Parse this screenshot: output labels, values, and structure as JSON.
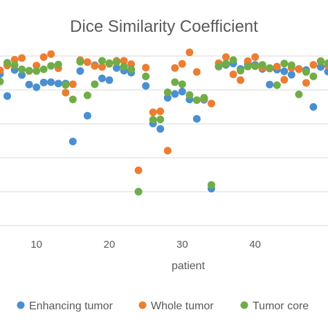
{
  "chart_data": {
    "type": "scatter",
    "title": "Dice Similarity Coefficient",
    "xlabel": "patient",
    "ylabel": "",
    "xlim": [
      5,
      50
    ],
    "ylim": [
      0.4,
      0.9
    ],
    "x_ticks": [
      10,
      20,
      30,
      40
    ],
    "y_gridlines": [
      0.4,
      0.5,
      0.6,
      0.7,
      0.8,
      0.9
    ],
    "grid": true,
    "legend_position": "bottom",
    "series": [
      {
        "name": "Enhancing tumor",
        "color": "#4a8fd1",
        "x": [
          5,
          6,
          7,
          8,
          9,
          10,
          11,
          12,
          13,
          14,
          15,
          16,
          17,
          18,
          19,
          20,
          21,
          22,
          23,
          24,
          25,
          26,
          27,
          28,
          29,
          30,
          31,
          32,
          33,
          34,
          35,
          36,
          37,
          38,
          39,
          40,
          41,
          42,
          43,
          44,
          45,
          46,
          47,
          48,
          49,
          50
        ],
        "y": [
          0.847,
          0.782,
          0.859,
          0.844,
          0.816,
          0.808,
          0.822,
          0.823,
          0.819,
          0.819,
          0.648,
          0.856,
          0.724,
          0.873,
          0.834,
          0.829,
          0.865,
          0.857,
          0.851,
          0.5,
          0.812,
          0.701,
          0.685,
          0.777,
          0.788,
          0.795,
          0.772,
          0.715,
          0.771,
          0.509,
          0.869,
          0.874,
          0.878,
          0.862,
          0.877,
          0.874,
          0.862,
          0.816,
          0.86,
          0.855,
          0.845,
          0.862,
          0.859,
          0.75,
          0.868,
          0.854
        ]
      },
      {
        "name": "Whole tumor",
        "color": "#ed7d31",
        "x": [
          5,
          6,
          7,
          8,
          9,
          10,
          11,
          12,
          13,
          14,
          15,
          16,
          17,
          18,
          19,
          20,
          21,
          22,
          23,
          24,
          25,
          26,
          27,
          28,
          29,
          30,
          31,
          32,
          33,
          34,
          35,
          36,
          37,
          38,
          39,
          40,
          41,
          42,
          43,
          44,
          45,
          46,
          47,
          48,
          49,
          50
        ],
        "y": [
          0.858,
          0.872,
          0.889,
          0.894,
          0.856,
          0.872,
          0.897,
          0.906,
          0.864,
          0.792,
          0.817,
          0.888,
          0.882,
          0.871,
          0.868,
          0.877,
          0.886,
          0.886,
          0.876,
          0.563,
          0.866,
          0.734,
          0.737,
          0.621,
          0.865,
          0.877,
          0.911,
          0.853,
          0.774,
          0.76,
          0.879,
          0.897,
          0.846,
          0.829,
          0.885,
          0.897,
          0.866,
          0.863,
          0.869,
          0.83,
          0.865,
          0.861,
          0.821,
          0.874,
          0.885,
          0.872
        ]
      },
      {
        "name": "Tumor core",
        "color": "#70ad47",
        "x": [
          5,
          6,
          7,
          8,
          9,
          10,
          11,
          12,
          13,
          14,
          15,
          16,
          17,
          18,
          19,
          20,
          21,
          22,
          23,
          24,
          25,
          26,
          27,
          28,
          29,
          30,
          31,
          32,
          33,
          34,
          35,
          36,
          37,
          38,
          39,
          40,
          41,
          42,
          43,
          44,
          45,
          46,
          47,
          48,
          49,
          50
        ],
        "y": [
          0.825,
          0.88,
          0.873,
          0.861,
          0.857,
          0.856,
          0.861,
          0.871,
          0.875,
          0.815,
          0.772,
          0.883,
          0.784,
          0.817,
          0.886,
          0.879,
          0.882,
          0.869,
          0.861,
          0.5,
          0.84,
          0.712,
          0.713,
          0.793,
          0.823,
          0.817,
          0.785,
          0.77,
          0.777,
          0.52,
          0.87,
          0.878,
          0.888,
          0.857,
          0.869,
          0.87,
          0.874,
          0.865,
          0.814,
          0.878,
          0.873,
          0.787,
          0.853,
          0.84,
          0.884,
          0.879
        ]
      }
    ]
  }
}
